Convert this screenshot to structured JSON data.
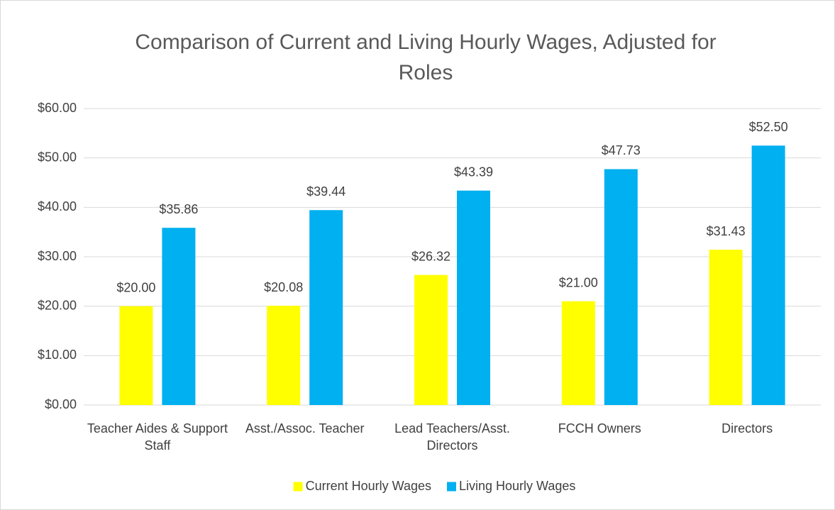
{
  "chart_data": {
    "type": "bar",
    "title": "Comparison of Current and Living Hourly Wages, Adjusted for Roles",
    "categories": [
      "Teacher Aides & Support Staff",
      "Asst./Assoc. Teacher",
      "Lead Teachers/Asst. Directors",
      "FCCH Owners",
      "Directors"
    ],
    "series": [
      {
        "name": "Current Hourly Wages",
        "color": "#ffff00",
        "values": [
          20.0,
          20.08,
          26.32,
          21.0,
          31.43
        ],
        "value_labels": [
          "$20.00",
          "$20.08",
          "$26.32",
          "$21.00",
          "$31.43"
        ]
      },
      {
        "name": "Living Hourly Wages",
        "color": "#00b0f0",
        "values": [
          35.86,
          39.44,
          43.39,
          47.73,
          52.5
        ],
        "value_labels": [
          "$35.86",
          "$39.44",
          "$43.39",
          "$47.73",
          "$52.50"
        ]
      }
    ],
    "ylim": [
      0,
      60
    ],
    "yticks": [
      {
        "value": 0,
        "label": "$0.00"
      },
      {
        "value": 10,
        "label": "$10.00"
      },
      {
        "value": 20,
        "label": "$20.00"
      },
      {
        "value": 30,
        "label": "$30.00"
      },
      {
        "value": 40,
        "label": "$40.00"
      },
      {
        "value": 50,
        "label": "$50.00"
      },
      {
        "value": 60,
        "label": "$60.00"
      }
    ],
    "grid": true,
    "legend": "bottom"
  }
}
